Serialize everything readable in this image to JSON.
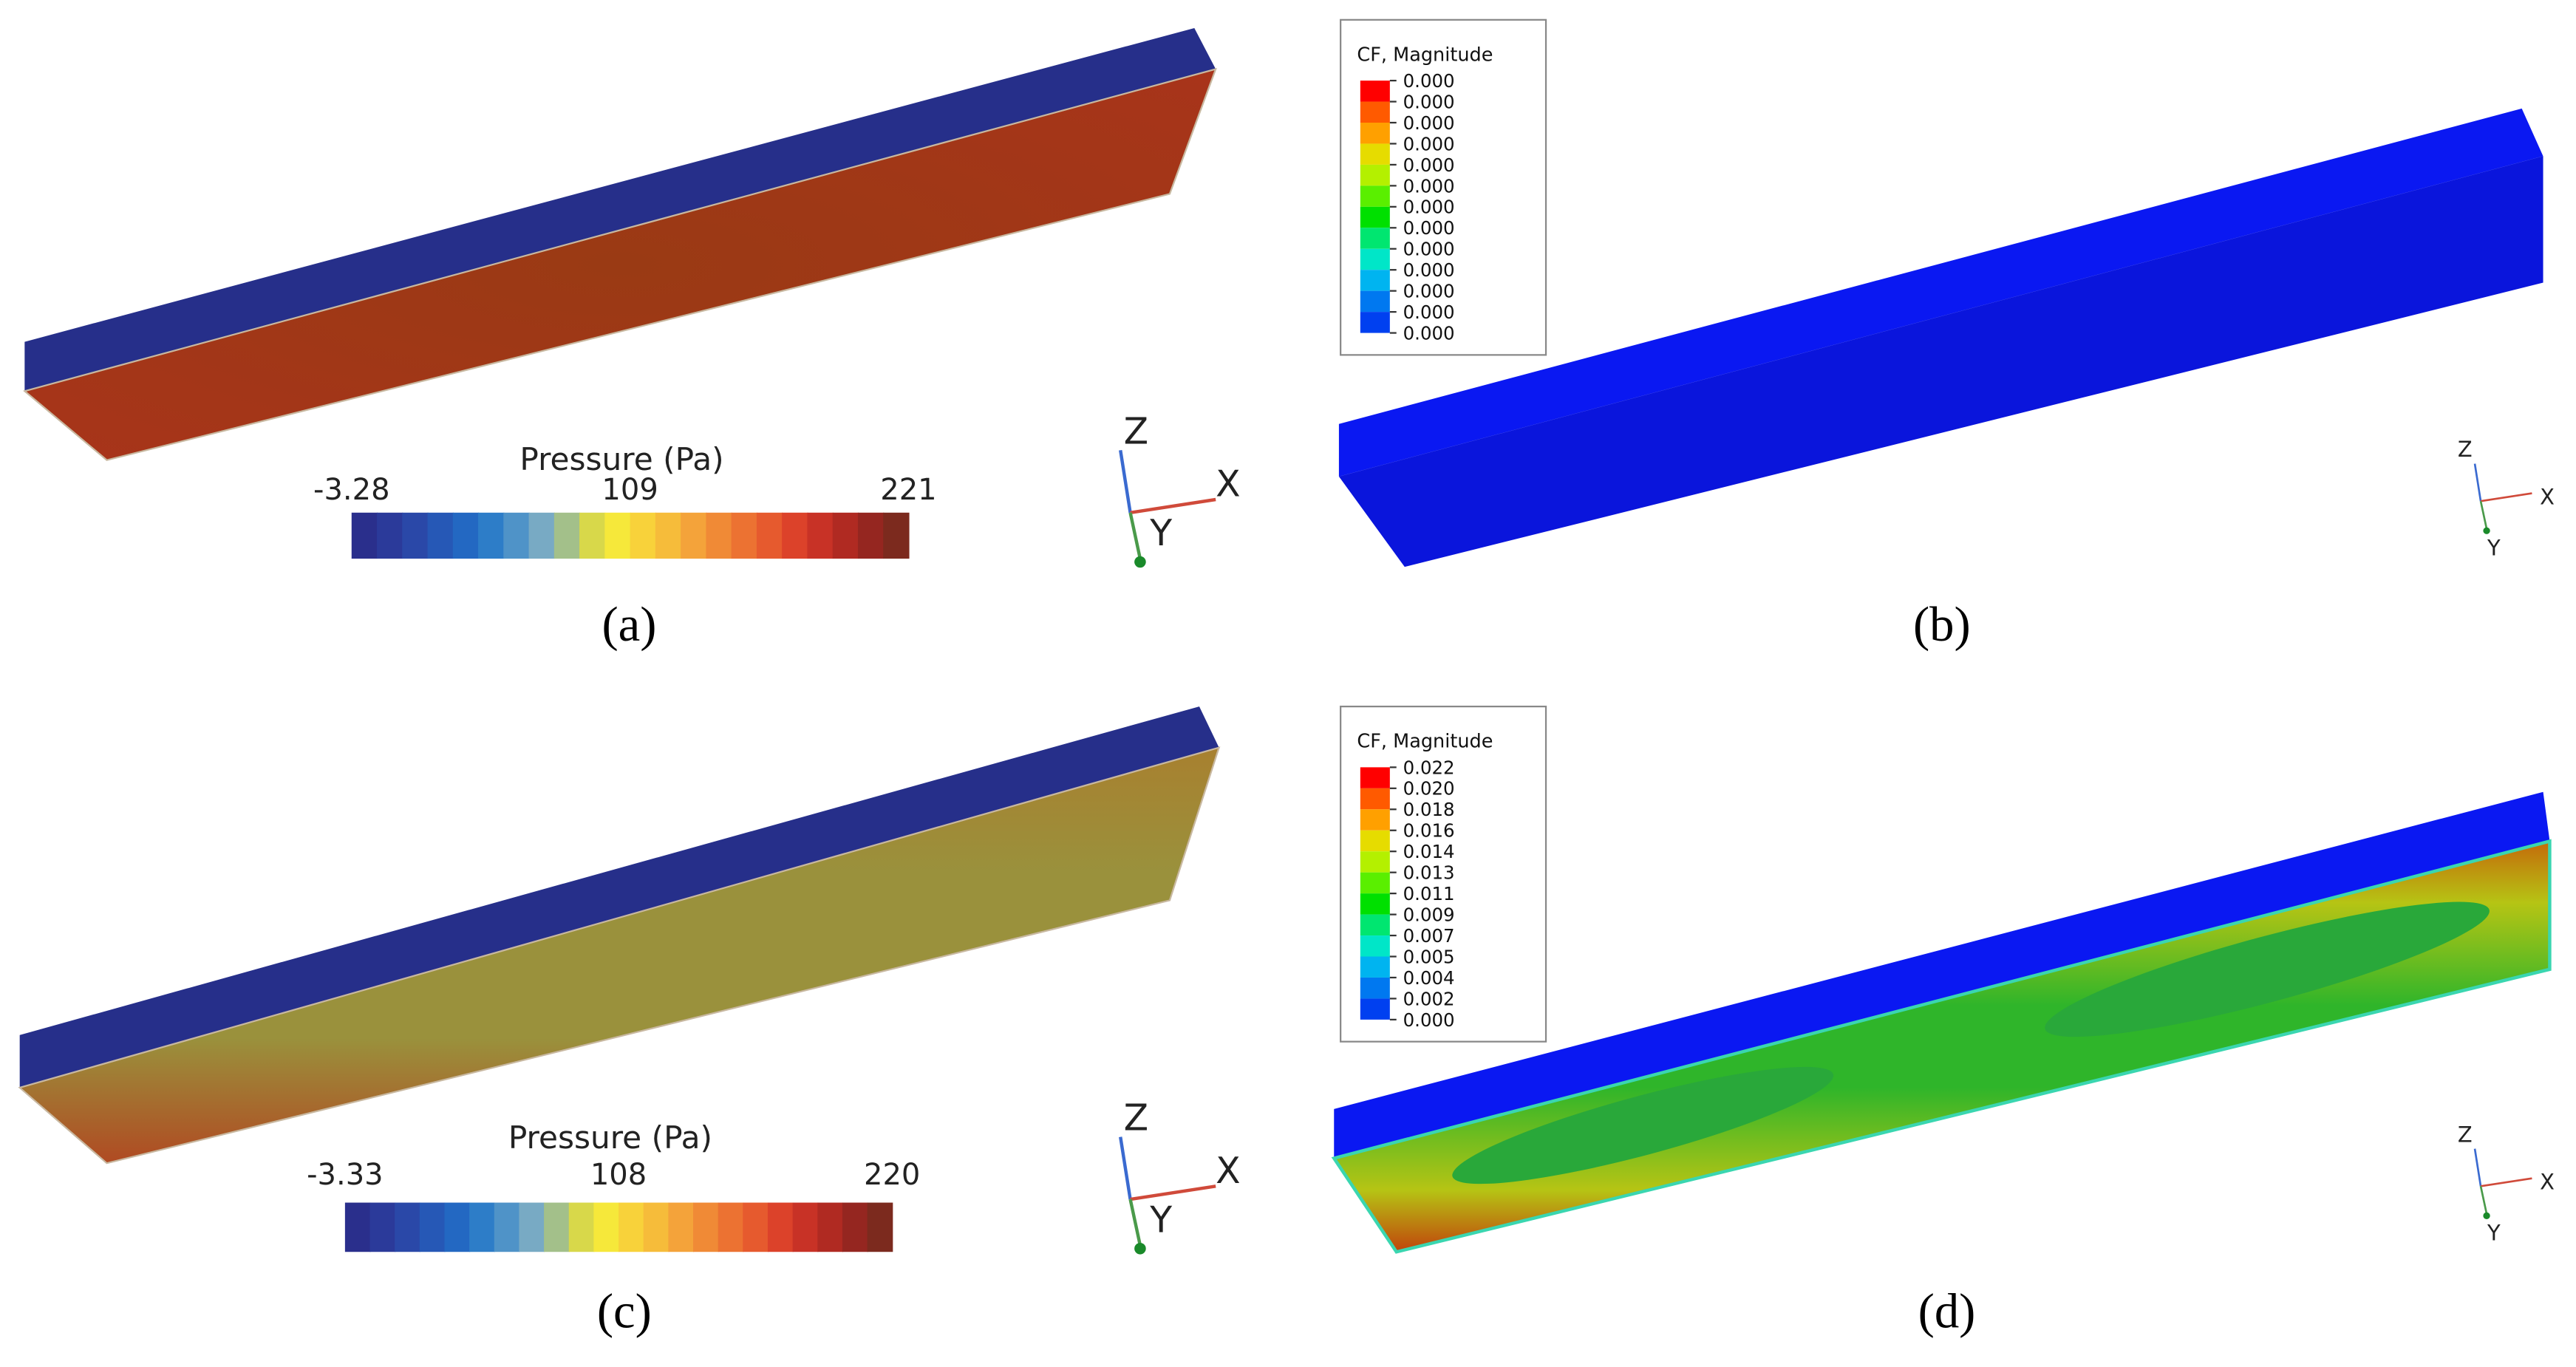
{
  "panels": [
    {
      "label": "(a)",
      "colorbar": {
        "title": "Pressure (Pa)",
        "ticks": [
          "-3.28",
          "109",
          "221"
        ]
      },
      "axes": {
        "z": "Z",
        "x": "X",
        "y": "Y"
      }
    },
    {
      "label": "(b)",
      "legend": {
        "title": "CF, Magnitude",
        "values": [
          "0.000",
          "0.000",
          "0.000",
          "0.000",
          "0.000",
          "0.000",
          "0.000",
          "0.000",
          "0.000",
          "0.000",
          "0.000",
          "0.000",
          "0.000"
        ]
      },
      "axes": {
        "z": "Z",
        "x": "X",
        "y": "Y"
      }
    },
    {
      "label": "(c)",
      "colorbar": {
        "title": "Pressure (Pa)",
        "ticks": [
          "-3.33",
          "108",
          "220"
        ]
      },
      "axes": {
        "z": "Z",
        "x": "X",
        "y": "Y"
      }
    },
    {
      "label": "(d)",
      "legend": {
        "title": "CF, Magnitude",
        "values": [
          "0.022",
          "0.020",
          "0.018",
          "0.016",
          "0.014",
          "0.013",
          "0.011",
          "0.009",
          "0.007",
          "0.005",
          "0.004",
          "0.002",
          "0.000"
        ]
      },
      "axes": {
        "z": "Z",
        "x": "X",
        "y": "Y"
      }
    }
  ]
}
